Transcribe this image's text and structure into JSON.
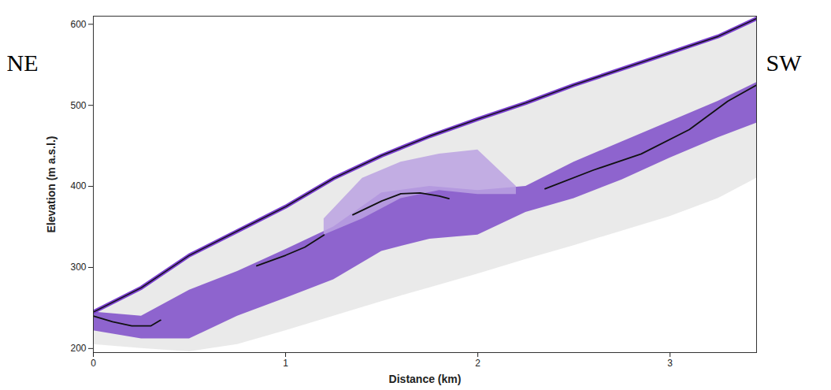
{
  "chart_data": {
    "type": "line",
    "xlabel": "Distance (km)",
    "ylabel": "Elevation (m a.s.l.)",
    "annotations": [
      "NE",
      "SW"
    ],
    "xlim": [
      0,
      3.45
    ],
    "xticks": [
      0,
      1,
      2,
      3
    ],
    "ylim": [
      195,
      610
    ],
    "yticks": [
      200,
      300,
      400,
      500,
      600
    ],
    "grid": false,
    "series": [
      {
        "type": "area",
        "color": "#e6e6e6",
        "x": [
          0,
          0.25,
          0.5,
          0.75,
          1,
          1.25,
          1.5,
          1.75,
          2,
          2.25,
          2.5,
          2.75,
          3,
          3.25,
          3.45
        ],
        "values": [
          245,
          275,
          315,
          345,
          375,
          410,
          438,
          462,
          483,
          503,
          525,
          545,
          565,
          585,
          607
        ],
        "base": [
          205,
          200,
          196,
          205,
          222,
          240,
          258,
          275,
          292,
          310,
          327,
          345,
          363,
          385,
          410
        ]
      },
      {
        "type": "area",
        "color": "#7e4cc9",
        "x": [
          0,
          0.25,
          0.5,
          0.75,
          1,
          1.25,
          1.5,
          1.75,
          2,
          2.25,
          2.5,
          2.75,
          3,
          3.25,
          3.45
        ],
        "values": [
          245,
          240,
          272,
          295,
          322,
          350,
          392,
          400,
          395,
          400,
          430,
          455,
          480,
          505,
          528
        ],
        "base": [
          222,
          212,
          212,
          240,
          262,
          285,
          320,
          335,
          340,
          368,
          385,
          408,
          435,
          460,
          478
        ]
      },
      {
        "type": "area",
        "color": "#bba2e2",
        "x": [
          1.2,
          1.4,
          1.6,
          1.8,
          2.0,
          2.2
        ],
        "values": [
          360,
          410,
          430,
          440,
          445,
          400
        ],
        "base": [
          340,
          360,
          385,
          395,
          390,
          390
        ]
      },
      {
        "type": "line",
        "color": "#7a3fd0",
        "line_style": "outlined",
        "x": [
          0,
          0.25,
          0.5,
          0.75,
          1,
          1.25,
          1.5,
          1.75,
          2,
          2.25,
          2.5,
          2.75,
          3,
          3.25,
          3.45
        ],
        "values": [
          245,
          275,
          315,
          345,
          375,
          410,
          438,
          462,
          483,
          503,
          525,
          545,
          565,
          585,
          607
        ]
      },
      {
        "type": "line",
        "color": "#111111",
        "line_style": "solid",
        "x": [
          0,
          0.1,
          0.2,
          0.3,
          0.35,
          0.6,
          0.85,
          1.0,
          1.1,
          1.2,
          1.3,
          1.35,
          1.5,
          1.6,
          1.7,
          1.8,
          1.85,
          2.1,
          2.35,
          2.6,
          2.85,
          3.1,
          3.3,
          3.45
        ],
        "values": [
          240,
          233,
          228,
          228,
          235,
          null,
          302,
          315,
          325,
          340,
          null,
          365,
          382,
          391,
          392,
          388,
          385,
          null,
          397,
          420,
          440,
          470,
          505,
          525
        ]
      }
    ]
  }
}
